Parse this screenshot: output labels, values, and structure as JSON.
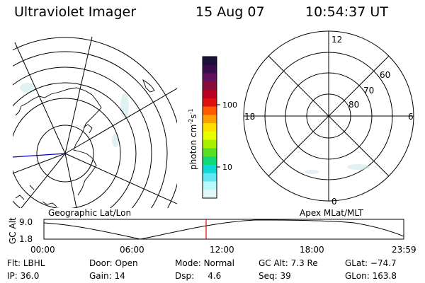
{
  "header": {
    "instrument": "Ultraviolet Imager",
    "date": "15 Aug 07",
    "time": "10:54:37 UT"
  },
  "geo_panel": {
    "label": "Geographic Lat/Lon"
  },
  "polar_panel": {
    "label": "Apex MLat/MLT",
    "hour_labels": [
      "12",
      "6",
      "0",
      "18"
    ],
    "lat_labels": [
      "60",
      "70",
      "80"
    ]
  },
  "colorbar": {
    "unit_label_main": "photon cm",
    "unit_label_sup1": "-2",
    "unit_label_mid": "s",
    "unit_label_sup2": "-1",
    "tick_labels": [
      "100",
      "10"
    ],
    "colors": [
      "#1c0f3a",
      "#3a0b4e",
      "#63105d",
      "#8a0a38",
      "#b80020",
      "#e01010",
      "#ff5a00",
      "#ffa000",
      "#ffdf00",
      "#e8ff00",
      "#a8f000",
      "#58e020",
      "#10d878",
      "#10d8d8",
      "#60e8f0",
      "#b8f8f8",
      "#e0f8f8"
    ]
  },
  "timeline": {
    "axis_label": "GC Alt",
    "y_labels": [
      "9.0",
      "1.8"
    ],
    "x_labels": [
      "00:00",
      "06:00",
      "12:00",
      "18:00",
      "23:59"
    ]
  },
  "status": {
    "row1": [
      {
        "key": "Flt:",
        "value": "LBHL"
      },
      {
        "key": "Door:",
        "value": "Open"
      },
      {
        "key": "Mode:",
        "value": "Normal"
      },
      {
        "key": "GC Alt:",
        "value": "7.3 Re"
      },
      {
        "key": "GLat:",
        "value": "−74.7"
      }
    ],
    "row2": [
      {
        "key": "IP:",
        "value": "36.0"
      },
      {
        "key": "Gain:",
        "value": "14"
      },
      {
        "key": "Dsp:",
        "value": "4.6"
      },
      {
        "key": "Seq:",
        "value": "39"
      },
      {
        "key": "GLon:",
        "value": "163.8"
      }
    ]
  }
}
